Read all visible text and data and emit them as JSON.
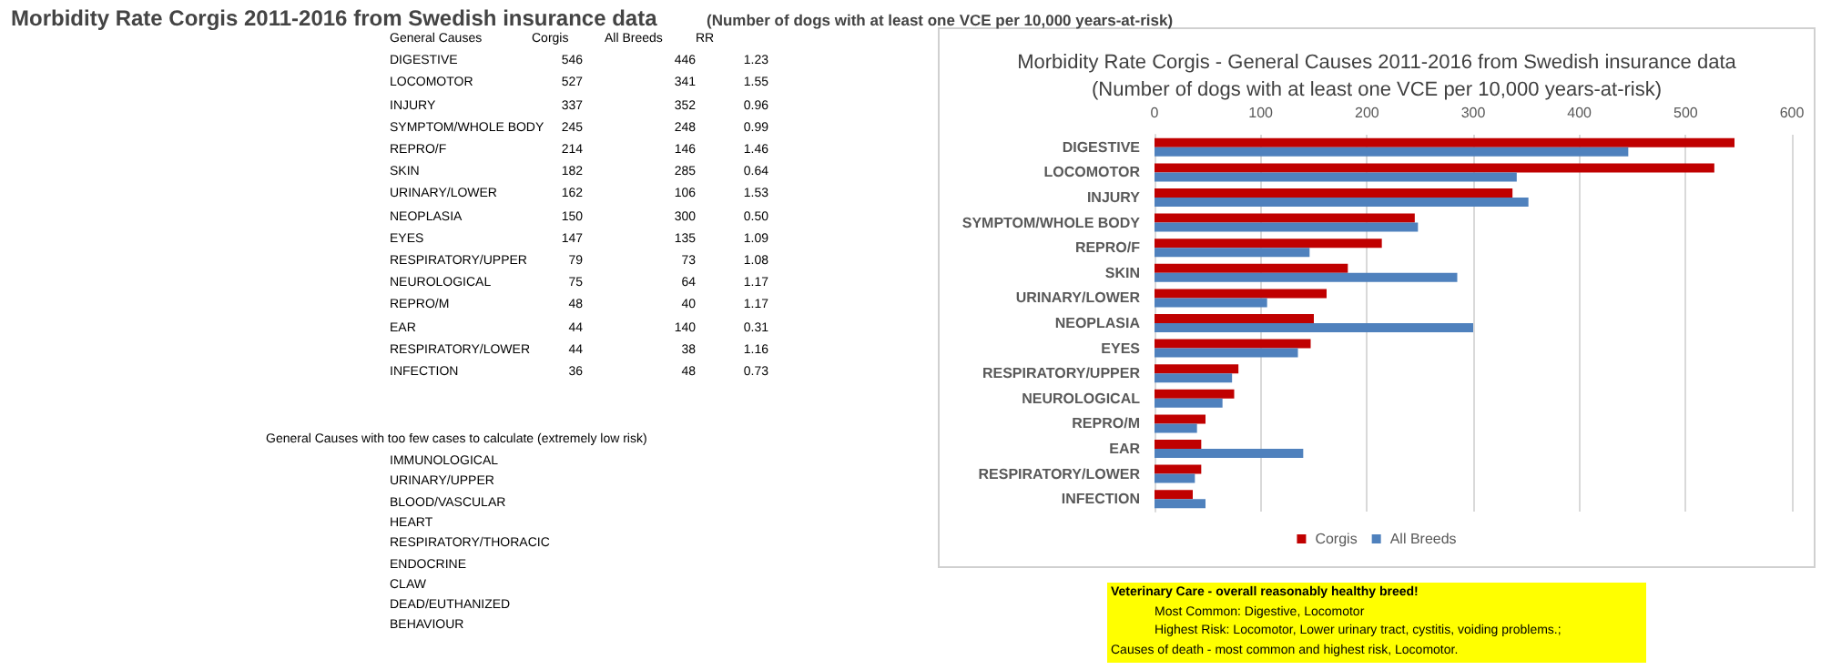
{
  "chart_data": [
    {
      "type": "other",
      "title": "Morbidity Rate Corgis 2011-2016 from Swedish insurance data",
      "subtitle": "(Number of dogs with at least one VCE per 10,000 years-at-risk)",
      "annotations": [
        "General Causes",
        "Corgis",
        "All Breeds",
        "RR",
        "DIGESTIVE",
        "546",
        "446",
        "1.23",
        "LOCOMOTOR",
        "527",
        "341",
        "1.55",
        "INJURY",
        "337",
        "352",
        "0.96",
        "SYMPTOM/WHOLE BODY",
        "245",
        "248",
        "0.99",
        "REPRO/F",
        "214",
        "146",
        "1.46",
        "SKIN",
        "182",
        "285",
        "0.64",
        "URINARY/LOWER",
        "162",
        "106",
        "1.53",
        "NEOPLASIA",
        "150",
        "300",
        "0.50",
        "EYES",
        "147",
        "135",
        "1.09",
        "RESPIRATORY/UPPER",
        "79",
        "73",
        "1.08",
        "NEUROLOGICAL",
        "75",
        "64",
        "1.17",
        "REPRO/M",
        "48",
        "40",
        "1.17",
        "EAR",
        "44",
        "140",
        "0.31",
        "RESPIRATORY/LOWER",
        "44",
        "38",
        "1.16",
        "INFECTION",
        "36",
        "48",
        "0.73",
        "General Causes with too few cases to calculate (extremely low risk)",
        "IMMUNOLOGICAL",
        "URINARY/UPPER",
        "BLOOD/VASCULAR",
        "HEART",
        "RESPIRATORY/THORACIC",
        "ENDOCRINE",
        "CLAW",
        "DEAD/EUTHANIZED",
        "BEHAVIOUR",
        "Veterinary Care - overall reasonably healthy breed!",
        "Most Common:  Digestive, Locomotor",
        "Highest Risk:  Locomotor, Lower urinary tract, cystitis, voiding problems.;",
        "Causes of death - most common and highest risk, Locomotor."
      ]
    },
    {
      "type": "bar",
      "orientation": "horizontal",
      "title": "Morbidity Rate Corgis - General Causes 2011-2016 from Swedish insurance data",
      "subtitle": "(Number of dogs with at least one VCE per 10,000 years-at-risk)",
      "categories": [
        "DIGESTIVE",
        "LOCOMOTOR",
        "INJURY",
        "SYMPTOM/WHOLE BODY",
        "REPRO/F",
        "SKIN",
        "URINARY/LOWER",
        "NEOPLASIA",
        "EYES",
        "RESPIRATORY/UPPER",
        "NEUROLOGICAL",
        "REPRO/M",
        "EAR",
        "RESPIRATORY/LOWER",
        "INFECTION"
      ],
      "series": [
        {
          "name": "Corgis",
          "color": "#c00000",
          "values": [
            546,
            527,
            337,
            245,
            214,
            182,
            162,
            150,
            147,
            79,
            75,
            48,
            44,
            44,
            36
          ]
        },
        {
          "name": "All Breeds",
          "color": "#4f81bd",
          "values": [
            446,
            341,
            352,
            248,
            146,
            285,
            106,
            300,
            135,
            73,
            64,
            40,
            140,
            38,
            48
          ]
        }
      ],
      "xlim": [
        0,
        600
      ],
      "xticks": [
        0,
        100,
        200,
        300,
        400,
        500,
        600
      ],
      "grid": "x",
      "legend": "bottom"
    }
  ]
}
